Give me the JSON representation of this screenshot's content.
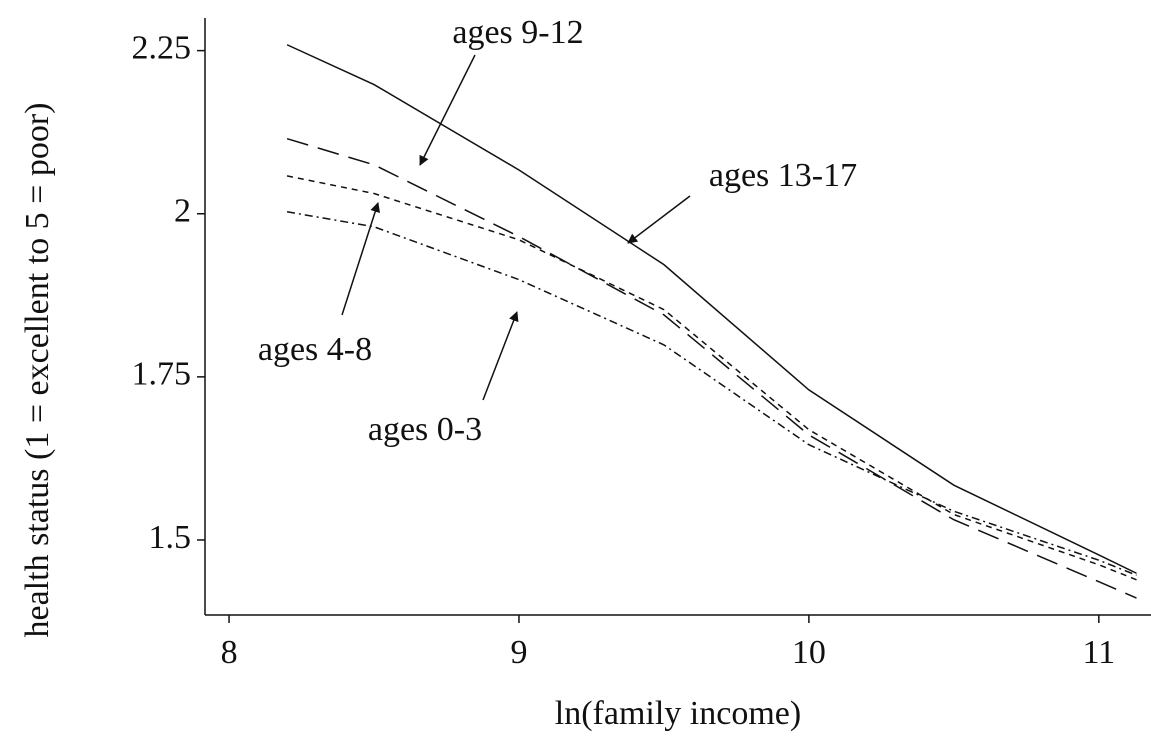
{
  "chart_data": {
    "type": "line",
    "xlabel": "ln(family income)",
    "ylabel": "health status (1 = excellent to 5 = poor)",
    "x": [
      8.2,
      8.5,
      9,
      9.5,
      10,
      10.5,
      11,
      11.13
    ],
    "series": [
      {
        "name": "ages 13-17",
        "color": "#111111",
        "values": [
          2.259,
          2.198,
          2.067,
          1.922,
          1.73,
          1.584,
          1.477,
          1.449
        ]
      },
      {
        "name": "ages 9-12",
        "color": "#111111",
        "values": [
          2.115,
          2.075,
          1.965,
          1.845,
          1.661,
          1.531,
          1.436,
          1.411
        ]
      },
      {
        "name": "ages 4-8",
        "color": "#111111",
        "values": [
          2.058,
          2.031,
          1.96,
          1.853,
          1.669,
          1.539,
          1.462,
          1.439
        ]
      },
      {
        "name": "ages 0-3",
        "color": "#111111",
        "values": [
          2.003,
          1.98,
          1.899,
          1.799,
          1.646,
          1.544,
          1.469,
          1.446
        ]
      }
    ],
    "xlim": [
      7.917,
      11.18
    ],
    "ylim": [
      1.385,
      2.3
    ],
    "xticks": [
      8,
      9,
      10,
      11
    ],
    "yticks": [
      1.5,
      1.75,
      2,
      2.25
    ]
  }
}
